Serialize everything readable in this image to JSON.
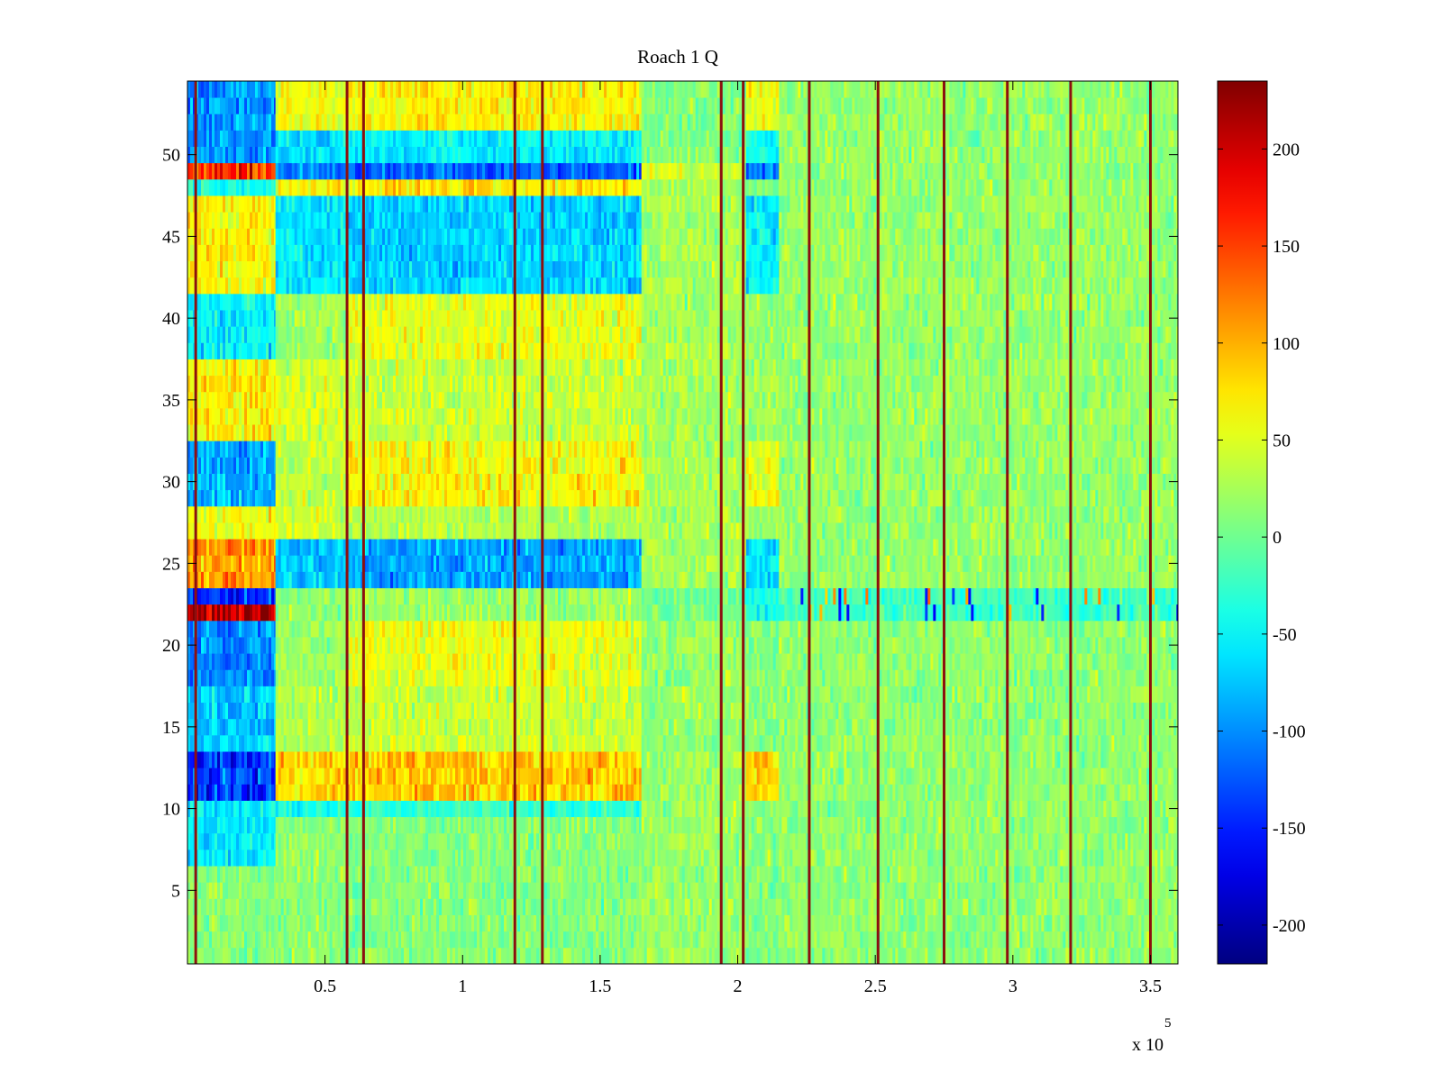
{
  "chart_data": {
    "type": "heatmap",
    "title": "Roach 1 Q",
    "xlabel": "",
    "ylabel": "",
    "x_range": [
      0,
      360000
    ],
    "y_range": [
      0.5,
      54.5
    ],
    "x_ticks": [
      50000,
      100000,
      150000,
      200000,
      250000,
      300000,
      350000
    ],
    "x_tick_labels": [
      "0.5",
      "1",
      "1.5",
      "2",
      "2.5",
      "3",
      "3.5"
    ],
    "x_exponent_label": "x 10",
    "x_exponent_power": "5",
    "y_ticks": [
      5,
      10,
      15,
      20,
      25,
      30,
      35,
      40,
      45,
      50
    ],
    "y_tick_labels": [
      "5",
      "10",
      "15",
      "20",
      "25",
      "30",
      "35",
      "40",
      "45",
      "50"
    ],
    "colormap": "jet",
    "color_range": [
      -220,
      235
    ],
    "colorbar_ticks": [
      200,
      150,
      100,
      50,
      0,
      -50,
      -100,
      -150,
      -200
    ],
    "colorbar_tick_labels": [
      "200",
      "150",
      "100",
      "50",
      "0",
      "-50",
      "-100",
      "-150",
      "-200"
    ],
    "grid": false,
    "colorbar": "right",
    "time_segments": [
      {
        "x_start": 0,
        "x_end": 32000,
        "profile": "A"
      },
      {
        "x_start": 32000,
        "x_end": 58000,
        "profile": "B"
      },
      {
        "x_start": 58000,
        "x_end": 165000,
        "profile": "C"
      },
      {
        "x_start": 165000,
        "x_end": 203000,
        "profile": "D"
      },
      {
        "x_start": 203000,
        "x_end": 215000,
        "profile": "E"
      },
      {
        "x_start": 215000,
        "x_end": 360000,
        "profile": "F"
      }
    ],
    "row_profiles": {
      "A": [
        {
          "rows": [
            1,
            6
          ],
          "mean": 10
        },
        {
          "rows": [
            7,
            10
          ],
          "mean": -55
        },
        {
          "rows": [
            11,
            13
          ],
          "mean": -140
        },
        {
          "rows": [
            14,
            17
          ],
          "mean": -70
        },
        {
          "rows": [
            18,
            21
          ],
          "mean": -100
        },
        {
          "rows": [
            22,
            22
          ],
          "mean": 210
        },
        {
          "rows": [
            23,
            23
          ],
          "mean": -140
        },
        {
          "rows": [
            24,
            26
          ],
          "mean": 110
        },
        {
          "rows": [
            27,
            28
          ],
          "mean": 60
        },
        {
          "rows": [
            29,
            32
          ],
          "mean": -85
        },
        {
          "rows": [
            33,
            37
          ],
          "mean": 70
        },
        {
          "rows": [
            38,
            41
          ],
          "mean": -55
        },
        {
          "rows": [
            42,
            47
          ],
          "mean": 65
        },
        {
          "rows": [
            48,
            48
          ],
          "mean": -40
        },
        {
          "rows": [
            49,
            49
          ],
          "mean": 160
        },
        {
          "rows": [
            50,
            54
          ],
          "mean": -95
        }
      ],
      "B": [
        {
          "rows": [
            1,
            9
          ],
          "mean": 15
        },
        {
          "rows": [
            10,
            10
          ],
          "mean": -45
        },
        {
          "rows": [
            11,
            13
          ],
          "mean": 80
        },
        {
          "rows": [
            14,
            17
          ],
          "mean": 30
        },
        {
          "rows": [
            18,
            21
          ],
          "mean": 20
        },
        {
          "rows": [
            22,
            23
          ],
          "mean": 15
        },
        {
          "rows": [
            24,
            26
          ],
          "mean": -75
        },
        {
          "rows": [
            27,
            33
          ],
          "mean": 40
        },
        {
          "rows": [
            34,
            37
          ],
          "mean": 45
        },
        {
          "rows": [
            38,
            41
          ],
          "mean": 20
        },
        {
          "rows": [
            42,
            47
          ],
          "mean": -60
        },
        {
          "rows": [
            48,
            48
          ],
          "mean": 70
        },
        {
          "rows": [
            49,
            49
          ],
          "mean": -110
        },
        {
          "rows": [
            50,
            51
          ],
          "mean": -60
        },
        {
          "rows": [
            52,
            54
          ],
          "mean": 60
        }
      ],
      "C": [
        {
          "rows": [
            1,
            9
          ],
          "mean": 10
        },
        {
          "rows": [
            10,
            10
          ],
          "mean": -30
        },
        {
          "rows": [
            11,
            13
          ],
          "mean": 90
        },
        {
          "rows": [
            14,
            17
          ],
          "mean": 40
        },
        {
          "rows": [
            18,
            21
          ],
          "mean": 55
        },
        {
          "rows": [
            22,
            23
          ],
          "mean": 20
        },
        {
          "rows": [
            24,
            26
          ],
          "mean": -90
        },
        {
          "rows": [
            27,
            28
          ],
          "mean": 30
        },
        {
          "rows": [
            29,
            32
          ],
          "mean": 65
        },
        {
          "rows": [
            33,
            37
          ],
          "mean": 40
        },
        {
          "rows": [
            38,
            41
          ],
          "mean": 55
        },
        {
          "rows": [
            42,
            47
          ],
          "mean": -70
        },
        {
          "rows": [
            48,
            48
          ],
          "mean": 75
        },
        {
          "rows": [
            49,
            49
          ],
          "mean": -120
        },
        {
          "rows": [
            50,
            51
          ],
          "mean": -55
        },
        {
          "rows": [
            52,
            54
          ],
          "mean": 70
        }
      ],
      "D": [
        {
          "rows": [
            1,
            21
          ],
          "mean": 20
        },
        {
          "rows": [
            22,
            23
          ],
          "mean": 0
        },
        {
          "rows": [
            24,
            48
          ],
          "mean": 25
        },
        {
          "rows": [
            49,
            49
          ],
          "mean": 40
        },
        {
          "rows": [
            50,
            54
          ],
          "mean": 10
        }
      ],
      "E": [
        {
          "rows": [
            1,
            10
          ],
          "mean": 15
        },
        {
          "rows": [
            11,
            13
          ],
          "mean": 80
        },
        {
          "rows": [
            14,
            21
          ],
          "mean": 10
        },
        {
          "rows": [
            22,
            23
          ],
          "mean": -40
        },
        {
          "rows": [
            24,
            26
          ],
          "mean": -60
        },
        {
          "rows": [
            27,
            28
          ],
          "mean": 20
        },
        {
          "rows": [
            29,
            32
          ],
          "mean": 55
        },
        {
          "rows": [
            33,
            41
          ],
          "mean": 20
        },
        {
          "rows": [
            42,
            47
          ],
          "mean": -55
        },
        {
          "rows": [
            48,
            48
          ],
          "mean": 10
        },
        {
          "rows": [
            49,
            49
          ],
          "mean": -110
        },
        {
          "rows": [
            50,
            51
          ],
          "mean": -40
        },
        {
          "rows": [
            52,
            54
          ],
          "mean": 60
        }
      ],
      "F": [
        {
          "rows": [
            1,
            21
          ],
          "mean": 15
        },
        {
          "rows": [
            22,
            23
          ],
          "mean": -20
        },
        {
          "rows": [
            24,
            54
          ],
          "mean": 18
        }
      ]
    },
    "vertical_artifacts_x": [
      3000,
      58000,
      64000,
      119000,
      129000,
      194000,
      202000,
      226000,
      251000,
      275000,
      298000,
      321000,
      350000
    ],
    "noisy_band_rows": [
      22,
      23
    ]
  }
}
